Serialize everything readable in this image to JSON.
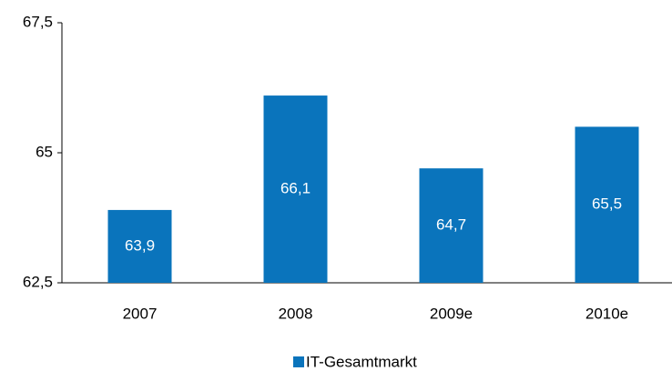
{
  "chart_data": {
    "type": "bar",
    "categories": [
      "2007",
      "2008",
      "2009e",
      "2010e"
    ],
    "series": [
      {
        "name": "IT-Gesamtmarkt",
        "color": "#0a74bc",
        "values": [
          63.9,
          66.1,
          64.7,
          65.5
        ],
        "value_labels": [
          "63,9",
          "66,1",
          "64,7",
          "65,5"
        ]
      }
    ],
    "ylim": [
      62.5,
      67.5
    ],
    "yticks": [
      {
        "value": 62.5,
        "label": "62,5"
      },
      65,
      {
        "value": 67.5,
        "label": "67,5"
      }
    ],
    "grid": false,
    "legend": "bottom"
  }
}
